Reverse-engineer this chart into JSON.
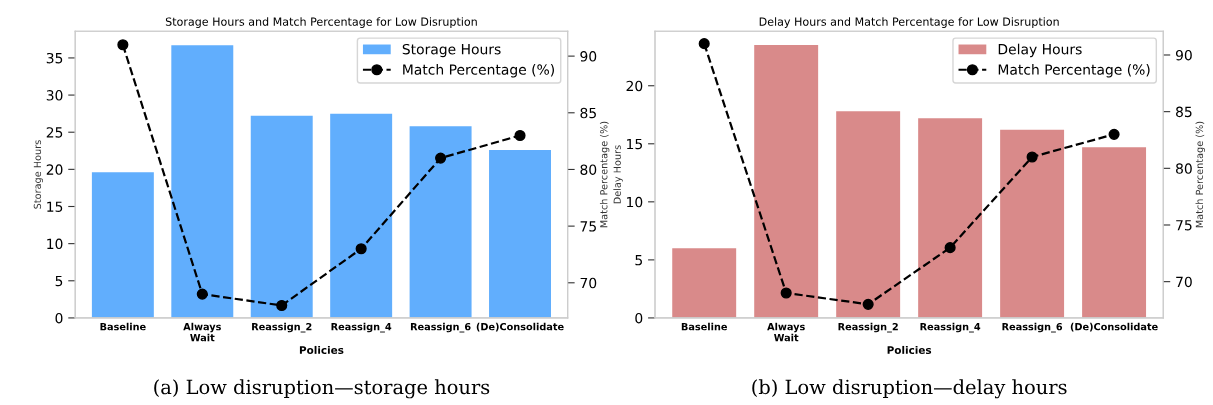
{
  "chart_data": [
    {
      "type": "bar",
      "title": "Storage Hours and Match Percentage for Low Disruption",
      "xlabel": "Policies",
      "ylabel": "Storage Hours",
      "y2label": "Match Percentage (%)",
      "categories": [
        "Baseline",
        "Always\nWait",
        "Reassign_2",
        "Reassign_4",
        "Reassign_6",
        "(De)Consolidate"
      ],
      "series": [
        {
          "name": "Storage Hours",
          "color": "#61aefd",
          "values": [
            19.6,
            36.7,
            27.2,
            27.5,
            25.8,
            22.6
          ]
        },
        {
          "name": "Match Percentage (%)",
          "type": "line",
          "axis": "y2",
          "color": "#000000",
          "marker": "circle",
          "line_style": "dashed",
          "values": [
            91,
            69,
            68,
            73,
            81,
            83
          ]
        }
      ],
      "ylim": [
        0,
        38.6
      ],
      "yticks": [
        0,
        5,
        10,
        15,
        20,
        25,
        30,
        35
      ],
      "y2lim": [
        66.9,
        92.2
      ],
      "y2ticks": [
        70,
        75,
        80,
        85,
        90
      ],
      "legend": "top right",
      "grid": false,
      "annotations": [
        "(a) Low disruption—storage hours"
      ]
    },
    {
      "type": "bar",
      "title": "Delay Hours and Match Percentage for Low Disruption",
      "xlabel": "Policies",
      "ylabel": "Delay Hours",
      "y2label": "Match Percentage (%)",
      "categories": [
        "Baseline",
        "Always\nWait",
        "Reassign_2",
        "Reassign_4",
        "Reassign_6",
        "(De)Consolidate"
      ],
      "series": [
        {
          "name": "Delay Hours",
          "color": "#d98a8a",
          "values": [
            6.0,
            23.5,
            17.8,
            17.2,
            16.2,
            14.7
          ]
        },
        {
          "name": "Match Percentage (%)",
          "type": "line",
          "axis": "y2",
          "color": "#000000",
          "marker": "circle",
          "line_style": "dashed",
          "values": [
            91,
            69,
            68,
            73,
            81,
            83
          ]
        }
      ],
      "ylim": [
        0,
        24.7
      ],
      "yticks": [
        0,
        5,
        10,
        15,
        20
      ],
      "y2lim": [
        66.8,
        92.1
      ],
      "y2ticks": [
        70,
        75,
        80,
        85,
        90
      ],
      "legend": "top right",
      "grid": false,
      "annotations": [
        "(b) Low disruption—delay hours"
      ]
    }
  ]
}
